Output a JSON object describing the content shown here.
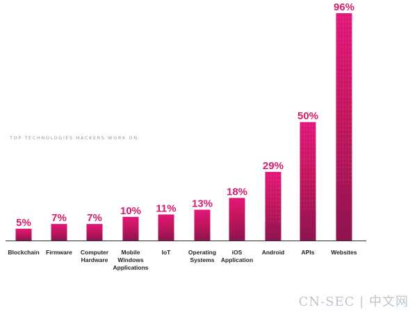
{
  "chart_data": {
    "type": "bar",
    "title": "TOP TECHNOLOGIES HACKERS WORK ON:",
    "categories": [
      "Blockchain",
      "Firmware",
      "Computer\nHardware",
      "Mobile\nWindows\nApplications",
      "IoT",
      "Operating\nSystems",
      "iOS\nApplication",
      "Android",
      "APIs",
      "Websites"
    ],
    "values": [
      5,
      7,
      7,
      10,
      11,
      13,
      18,
      29,
      50,
      96
    ],
    "value_labels": [
      "5%",
      "7%",
      "7%",
      "10%",
      "11%",
      "13%",
      "18%",
      "29%",
      "50%",
      "96%"
    ],
    "unit": "%",
    "ylim": [
      0,
      100
    ],
    "grid": false,
    "colors": {
      "bar_dark": "#8e1450",
      "bar_mid": "#c4155e",
      "bar_bright": "#e2177a",
      "value_label": "#d81a6c",
      "axis": "#333333",
      "category_label": "#222222"
    }
  },
  "watermark": "CN-SEC | 中文网"
}
